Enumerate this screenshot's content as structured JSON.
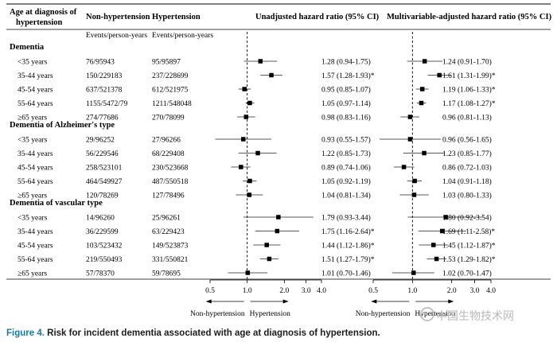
{
  "headers": {
    "age": "Age at diagnosis of hypertension",
    "nonhyp": "Non-hypertension",
    "hyp": "Hypertension",
    "events_nonhyp": "Events/person-years",
    "events_hyp": "Events/person-years",
    "unadjusted": "Unadjusted hazard ratio (95% CI)",
    "multivariable": "Multivariable-adjusted hazard ratio  (95% CI)"
  },
  "chart_data": [
    {
      "type": "forest",
      "title": "Unadjusted hazard ratio (95% CI)",
      "xscale": "log",
      "xlim": [
        0.5,
        4.0
      ],
      "xticks": [
        "0.5",
        "1.0",
        "2.0",
        "3.0",
        "4.0"
      ],
      "reference_line": 1.0,
      "arrow_left": "Non-hypertension",
      "arrow_right": "Hypertension",
      "groups": [
        {
          "name": "Dementia",
          "rows": [
            {
              "age": "<35 years",
              "nonhyp": "76/95943",
              "hyp": "95/95897",
              "hr": 1.28,
              "lo": 0.94,
              "hi": 1.75,
              "label": "1.28 (0.94-1.75)"
            },
            {
              "age": "35-44 years",
              "nonhyp": "150/229183",
              "hyp": "237/228699",
              "hr": 1.57,
              "lo": 1.28,
              "hi": 1.93,
              "label": "1.57 (1.28-1.93)*"
            },
            {
              "age": "45-54 years",
              "nonhyp": "637/521378",
              "hyp": "612/521975",
              "hr": 0.95,
              "lo": 0.85,
              "hi": 1.07,
              "label": "0.95 (0.85-1.07)"
            },
            {
              "age": "55-64 years",
              "nonhyp": "1155/5472/79",
              "hyp": "1211/548048",
              "hr": 1.05,
              "lo": 0.97,
              "hi": 1.14,
              "label": "1.05 (0.97-1.14)"
            },
            {
              "age": "≥65 years",
              "nonhyp": "274/77686",
              "hyp": "270/78099",
              "hr": 0.98,
              "lo": 0.83,
              "hi": 1.16,
              "label": "0.98 (0.83-1.16)"
            }
          ]
        },
        {
          "name": "Dementia of Alzheimer's type",
          "rows": [
            {
              "age": "<35 years",
              "nonhyp": "29/96252",
              "hyp": "27/96266",
              "hr": 0.93,
              "lo": 0.55,
              "hi": 1.57,
              "label": "0.93 (0.55-1.57)"
            },
            {
              "age": "35-44 years",
              "nonhyp": "56/229546",
              "hyp": "68/229408",
              "hr": 1.22,
              "lo": 0.85,
              "hi": 1.73,
              "label": "1.22 (0.85-1.73)"
            },
            {
              "age": "45-54 years",
              "nonhyp": "258/523101",
              "hyp": "230/523668",
              "hr": 0.89,
              "lo": 0.74,
              "hi": 1.06,
              "label": "0.89 (0.74-1.06)"
            },
            {
              "age": "55-64 years",
              "nonhyp": "464/549927",
              "hyp": "487/550518",
              "hr": 1.05,
              "lo": 0.92,
              "hi": 1.19,
              "label": "1.05 (0.92-1.19)"
            },
            {
              "age": "≥65 years",
              "nonhyp": "120/78269",
              "hyp": "127/78496",
              "hr": 1.04,
              "lo": 0.81,
              "hi": 1.34,
              "label": "1.04 (0.81-1.34)"
            }
          ]
        },
        {
          "name": "Dementia of vascular type",
          "rows": [
            {
              "age": "<35 years",
              "nonhyp": "14/96260",
              "hyp": "25/96261",
              "hr": 1.79,
              "lo": 0.93,
              "hi": 3.44,
              "label": "1.79 (0.93-3.44)"
            },
            {
              "age": "35-44 years",
              "nonhyp": "36/229599",
              "hyp": "63/229423",
              "hr": 1.75,
              "lo": 1.16,
              "hi": 2.64,
              "label": "1.75 (1.16-2.64)*"
            },
            {
              "age": "45-54 years",
              "nonhyp": "103/523432",
              "hyp": "149/523873",
              "hr": 1.44,
              "lo": 1.12,
              "hi": 1.86,
              "label": "1.44 (1.12-1.86)*"
            },
            {
              "age": "55-64 years",
              "nonhyp": "219/550493",
              "hyp": "331/550821",
              "hr": 1.51,
              "lo": 1.27,
              "hi": 1.79,
              "label": "1.51 (1.27-1.79)*"
            },
            {
              "age": "≥65 years",
              "nonhyp": "57/78370",
              "hyp": "59/78695",
              "hr": 1.01,
              "lo": 0.7,
              "hi": 1.46,
              "label": "1.01 (0.70-1.46)"
            }
          ]
        }
      ]
    },
    {
      "type": "forest",
      "title": "Multivariable-adjusted hazard ratio  (95% CI)",
      "xscale": "log",
      "xlim": [
        0.5,
        4.0
      ],
      "xticks": [
        "0.5",
        "1.0",
        "2.0",
        "3.0",
        "4.0"
      ],
      "reference_line": 1.0,
      "arrow_left": "Non-hypertension",
      "arrow_right": "Hypertension",
      "groups": [
        {
          "name": "Dementia",
          "rows": [
            {
              "hr": 1.24,
              "lo": 0.91,
              "hi": 1.7,
              "label": "1.24 (0.91-1.70)"
            },
            {
              "hr": 1.61,
              "lo": 1.31,
              "hi": 1.99,
              "label": "1.61 (1.31-1.99)*"
            },
            {
              "hr": 1.19,
              "lo": 1.06,
              "hi": 1.33,
              "label": "1.19 (1.06-1.33)*"
            },
            {
              "hr": 1.17,
              "lo": 1.08,
              "hi": 1.27,
              "label": "1.17 (1.08-1.27)*"
            },
            {
              "hr": 0.96,
              "lo": 0.81,
              "hi": 1.13,
              "label": "0.96 (0.81-1.13)"
            }
          ]
        },
        {
          "name": "Dementia of Alzheimer's type",
          "rows": [
            {
              "hr": 0.96,
              "lo": 0.56,
              "hi": 1.65,
              "label": "0.96 (0.56-1.65)"
            },
            {
              "hr": 1.23,
              "lo": 0.85,
              "hi": 1.77,
              "label": "1.23 (0.85-1.77)"
            },
            {
              "hr": 0.86,
              "lo": 0.72,
              "hi": 1.03,
              "label": "0.86 (0.72-1.03)"
            },
            {
              "hr": 1.04,
              "lo": 0.91,
              "hi": 1.18,
              "label": "1.04 (0.91-1.18)"
            },
            {
              "hr": 1.03,
              "lo": 0.8,
              "hi": 1.33,
              "label": "1.03 (0.80-1.33)"
            }
          ]
        },
        {
          "name": "Dementia of vascular type",
          "rows": [
            {
              "hr": 1.8,
              "lo": 0.92,
              "hi": 3.54,
              "label": "1.80 (0.92-3.54)"
            },
            {
              "hr": 1.69,
              "lo": 1.11,
              "hi": 2.58,
              "label": "1.69 (1.11-2.58)*"
            },
            {
              "hr": 1.45,
              "lo": 1.12,
              "hi": 1.87,
              "label": "1.45 (1.12-1.87)*"
            },
            {
              "hr": 1.53,
              "lo": 1.29,
              "hi": 1.82,
              "label": "1.53 (1.29-1.82)*"
            },
            {
              "hr": 1.02,
              "lo": 0.7,
              "hi": 1.47,
              "label": "1.02 (0.70-1.47)"
            }
          ]
        }
      ]
    }
  ],
  "caption": {
    "figure": "Figure 4.",
    "text": " Risk for incident dementia associated with age at diagnosis of hypertension."
  },
  "watermark": "中国生物技术网"
}
